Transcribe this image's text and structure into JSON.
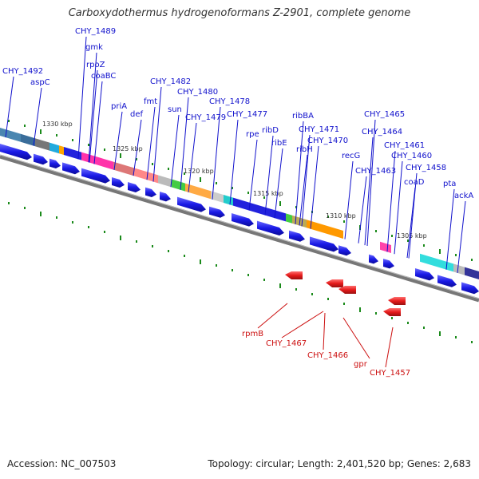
{
  "title": "Carboxydothermus hydrogenoformans Z-2901, complete genome",
  "footer": {
    "accession": "Accession: NC_007503",
    "summary": "Topology: circular; Length: 2,401,520 bp; Genes: 2,683"
  },
  "scale_labels": [
    "1330 kbp",
    "1325 kbp",
    "1320 kbp",
    "1315 kbp",
    "1310 kbp",
    "1305 kbp"
  ],
  "upper_labels": [
    "CHY_1492",
    "aspC",
    "CHY_1489",
    "gmk",
    "rpoZ",
    "coaBC",
    "priA",
    "def",
    "fmt",
    "CHY_1482",
    "sun",
    "CHY_1480",
    "CHY_1479",
    "CHY_1478",
    "CHY_1477",
    "rpe",
    "ribD",
    "ribE",
    "ribBA",
    "CHY_1471",
    "ribH",
    "CHY_1470",
    "recG",
    "CHY_1465",
    "CHY_1464",
    "CHY_1463",
    "CHY_1461",
    "CHY_1460",
    "coaD",
    "CHY_1458",
    "pta",
    "ackA"
  ],
  "lower_labels": [
    "rpmB",
    "CHY_1467",
    "CHY_1466",
    "gpr",
    "CHY_1457"
  ],
  "colors": {
    "forward_gene": "#1a1ae6",
    "reverse_gene": "#e61a1a",
    "backbone": "#888888",
    "tick": "#1a8a1a",
    "label_blue": "#1010cc",
    "label_red": "#cc1010"
  }
}
